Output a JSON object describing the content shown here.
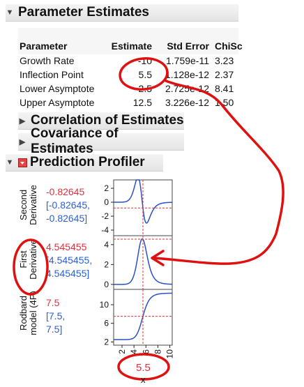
{
  "sections": {
    "parameter_estimates": "Parameter Estimates",
    "correlation": "Correlation of Estimates",
    "covariance": "Covariance of Estimates",
    "profiler": "Prediction Profiler"
  },
  "table": {
    "headers": [
      "Parameter",
      "Estimate",
      "Std Error",
      "ChiSc"
    ],
    "rows": [
      {
        "name": "Growth Rate",
        "estimate": "-10",
        "stderr": "1.759e-11",
        "chisq": "3.23"
      },
      {
        "name": "Inflection Point",
        "estimate": "5.5",
        "stderr": "1.128e-12",
        "chisq": "2.37"
      },
      {
        "name": "Lower Asymptote",
        "estimate": "2.5",
        "stderr": "2.725e-12",
        "chisq": "8.41"
      },
      {
        "name": "Upper Asymptote",
        "estimate": "12.5",
        "stderr": "3.226e-12",
        "chisq": "1.50"
      }
    ]
  },
  "profiler": {
    "second_label": "Second Derivative",
    "second_value": "-0.82645",
    "second_ci1": "[-0.82645,",
    "second_ci2": "-0.82645]",
    "second_ticks": [
      "2",
      "0",
      "-2",
      "-4"
    ],
    "first_label": "First Derivative",
    "first_value": "4.545455",
    "first_ci1": "[4.545455,",
    "first_ci2": "4.545455]",
    "first_ticks": [
      "4",
      "2",
      "0"
    ],
    "model_label": "Rodbard model (4P)",
    "model_value": "7.5",
    "model_ci1": "[7.5,",
    "model_ci2": "7.5]",
    "model_ticks": [
      "10",
      "6",
      "2"
    ],
    "x_ticks": [
      "2",
      "4",
      "6",
      "8",
      "10"
    ],
    "x_value": "5.5",
    "x_label": "x"
  },
  "colors": {
    "curve": "#2850c8",
    "dashed": "#e03030",
    "annotation": "#e01010"
  }
}
